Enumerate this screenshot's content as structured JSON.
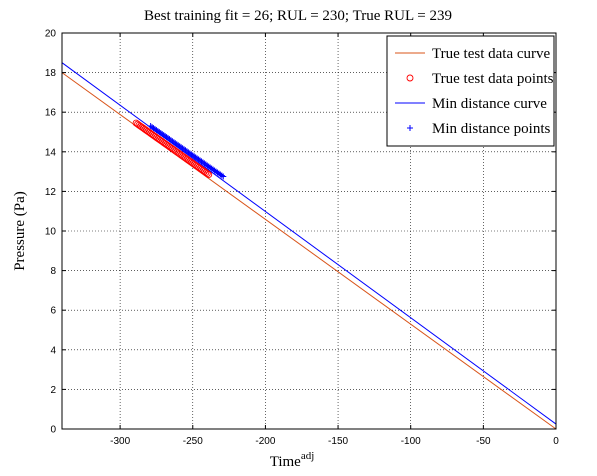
{
  "chart_data": {
    "type": "line",
    "title": "Best training fit = 26; RUL = 230; True RUL = 239",
    "xlabel": "Time",
    "xlabel_superscript": "adj",
    "ylabel": "Pressure (Pa)",
    "xlim": [
      -340,
      0
    ],
    "ylim": [
      0,
      20
    ],
    "xticks": [
      -300,
      -250,
      -200,
      -150,
      -100,
      -50,
      0
    ],
    "yticks": [
      0,
      2,
      4,
      6,
      8,
      10,
      12,
      14,
      16,
      18,
      20
    ],
    "grid": true,
    "legend_position": "top-right",
    "series": [
      {
        "name": "True test data curve",
        "kind": "line",
        "color": "#d9541a",
        "x": [
          -340,
          0
        ],
        "y": [
          18.0,
          0.0
        ]
      },
      {
        "name": "True test data points",
        "kind": "scatter",
        "marker": "circle",
        "color": "#ff0000",
        "x_start": -289,
        "x_end": -239,
        "y_start": 15.45,
        "y_end": 12.85,
        "count": 51
      },
      {
        "name": "Min distance curve",
        "kind": "line",
        "color": "#0000ff",
        "x": [
          -340,
          0
        ],
        "y": [
          18.5,
          0.25
        ]
      },
      {
        "name": "Min distance points",
        "kind": "scatter",
        "marker": "plus",
        "color": "#0000ff",
        "x_start": -279,
        "x_end": -229,
        "y_start": 15.3,
        "y_end": 12.75,
        "count": 51
      }
    ]
  }
}
